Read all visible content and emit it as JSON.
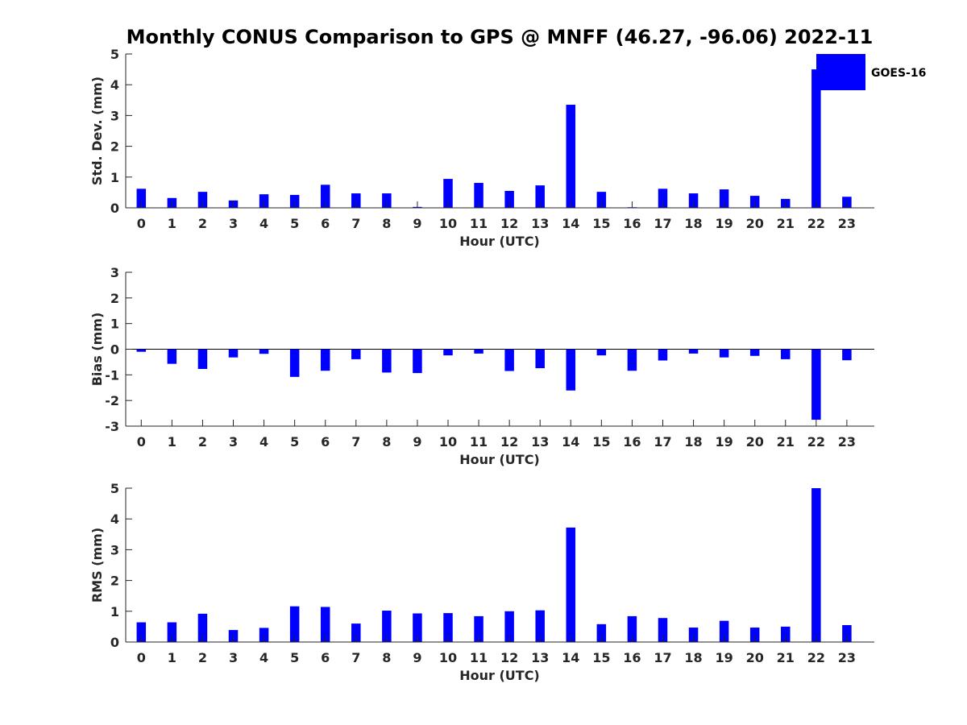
{
  "title": "Monthly CONUS Comparison to GPS @ MNFF (46.27, -96.06) 2022-11",
  "legend": {
    "label": "GOES-16",
    "color": "#0000ff"
  },
  "chart_data": [
    {
      "type": "bar",
      "name": "stddev",
      "xlabel": "Hour (UTC)",
      "ylabel": "Std. Dev. (mm)",
      "ylim": [
        0,
        5
      ],
      "yticks": [
        0,
        1,
        2,
        3,
        4,
        5
      ],
      "categories": [
        "0",
        "1",
        "2",
        "3",
        "4",
        "5",
        "6",
        "7",
        "8",
        "9",
        "10",
        "11",
        "12",
        "13",
        "14",
        "15",
        "16",
        "17",
        "18",
        "19",
        "20",
        "21",
        "22",
        "23"
      ],
      "values": [
        0.62,
        0.32,
        0.52,
        0.24,
        0.44,
        0.42,
        0.75,
        0.47,
        0.47,
        0.03,
        0.94,
        0.81,
        0.55,
        0.73,
        3.35,
        0.52,
        0.02,
        0.62,
        0.47,
        0.6,
        0.39,
        0.29,
        4.5,
        0.36
      ],
      "color": "#0000ff"
    },
    {
      "type": "bar",
      "name": "bias",
      "xlabel": "Hour (UTC)",
      "ylabel": "Bias (mm)",
      "ylim": [
        -3,
        3
      ],
      "yticks": [
        -3,
        -2,
        -1,
        0,
        1,
        2,
        3
      ],
      "categories": [
        "0",
        "1",
        "2",
        "3",
        "4",
        "5",
        "6",
        "7",
        "8",
        "9",
        "10",
        "11",
        "12",
        "13",
        "14",
        "15",
        "16",
        "17",
        "18",
        "19",
        "20",
        "21",
        "22",
        "23"
      ],
      "values": [
        -0.1,
        -0.57,
        -0.77,
        -0.32,
        -0.18,
        -1.08,
        -0.84,
        -0.39,
        -0.91,
        -0.93,
        -0.24,
        -0.17,
        -0.85,
        -0.74,
        -1.61,
        -0.24,
        -0.84,
        -0.44,
        -0.17,
        -0.32,
        -0.26,
        -0.39,
        -2.75,
        -0.43
      ],
      "color": "#0000ff"
    },
    {
      "type": "bar",
      "name": "rms",
      "xlabel": "Hour (UTC)",
      "ylabel": "RMS (mm)",
      "ylim": [
        0,
        5
      ],
      "yticks": [
        0,
        1,
        2,
        3,
        4,
        5
      ],
      "categories": [
        "0",
        "1",
        "2",
        "3",
        "4",
        "5",
        "6",
        "7",
        "8",
        "9",
        "10",
        "11",
        "12",
        "13",
        "14",
        "15",
        "16",
        "17",
        "18",
        "19",
        "20",
        "21",
        "22",
        "23"
      ],
      "values": [
        0.64,
        0.64,
        0.92,
        0.39,
        0.46,
        1.16,
        1.14,
        0.6,
        1.02,
        0.93,
        0.94,
        0.84,
        1.0,
        1.03,
        3.72,
        0.58,
        0.84,
        0.78,
        0.47,
        0.69,
        0.47,
        0.5,
        5.0,
        0.55
      ],
      "color": "#0000ff"
    }
  ]
}
